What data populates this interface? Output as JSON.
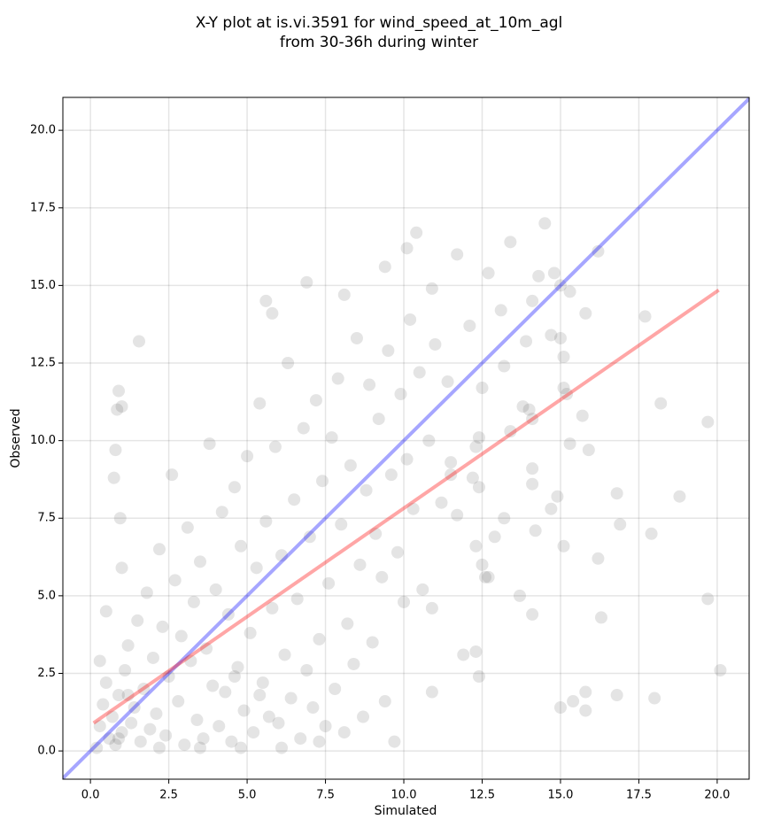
{
  "chart_data": {
    "type": "scatter",
    "title": [
      "X-Y plot at is.vi.3591 for wind_speed_at_10m_agl",
      "from 30-36h during winter"
    ],
    "xlabel": "Simulated",
    "ylabel": "Observed",
    "xlim": [
      -0.88,
      21.02
    ],
    "ylim": [
      -0.91,
      21.06
    ],
    "xticks": [
      {
        "value": 0,
        "label": "0.0"
      },
      2.5,
      {
        "value": 5,
        "label": "5.0"
      },
      7.5,
      {
        "value": 10,
        "label": "10.0"
      },
      12.5,
      {
        "value": 15,
        "label": "15.0"
      },
      17.5,
      {
        "value": 20,
        "label": "20.0"
      }
    ],
    "yticks": [
      {
        "value": 0,
        "label": "0.0"
      },
      2.5,
      {
        "value": 5,
        "label": "5.0"
      },
      7.5,
      {
        "value": 10,
        "label": "10.0"
      },
      12.5,
      {
        "value": 15,
        "label": "15.0"
      },
      17.5,
      {
        "value": 20,
        "label": "20.0"
      }
    ],
    "grid": true,
    "points": {
      "color": "#404040",
      "opacity": 0.14,
      "x": [
        1.55,
        0.9,
        1.0,
        0.85,
        0.75,
        0.8,
        0.95,
        10.4,
        10.1,
        11.7,
        13.4,
        14.5,
        16.2,
        9.4,
        6.9,
        5.6,
        5.8,
        8.1,
        10.9,
        12.7,
        14.3,
        14.8,
        15.0,
        15.3,
        15.8,
        17.7,
        14.1,
        13.1,
        12.1,
        13.9,
        15.0,
        14.7,
        15.1,
        13.2,
        12.5,
        13.8,
        14.0,
        14.1,
        13.4,
        12.4,
        12.3,
        15.1,
        15.2,
        15.7,
        15.3,
        15.9,
        18.2,
        19.7,
        18.8,
        17.9,
        16.8,
        16.9,
        15.1,
        14.9,
        14.7,
        14.1,
        14.1,
        14.2,
        13.2,
        12.9,
        12.3,
        12.5,
        12.6,
        12.7,
        13.7,
        14.1,
        16.3,
        16.2,
        19.7,
        20.1,
        18.0,
        16.8,
        15.8,
        15.8,
        15.4,
        15.0,
        12.3,
        12.4,
        11.9,
        10.9,
        10.9,
        11.5,
        11.7,
        11.5,
        12.2,
        12.4,
        0.2,
        0.3,
        0.4,
        0.5,
        0.6,
        0.7,
        0.8,
        0.9,
        1.0,
        1.1,
        1.2,
        1.3,
        1.4,
        1.5,
        1.6,
        1.7,
        1.8,
        1.9,
        2.0,
        2.1,
        2.2,
        2.3,
        2.4,
        2.5,
        2.6,
        2.7,
        2.8,
        2.9,
        3.0,
        3.1,
        3.2,
        3.3,
        3.4,
        3.5,
        3.6,
        3.7,
        3.8,
        3.9,
        4.0,
        4.1,
        4.2,
        4.3,
        4.4,
        4.5,
        4.6,
        4.7,
        4.8,
        4.9,
        5.0,
        5.1,
        5.2,
        5.3,
        5.4,
        5.5,
        5.6,
        5.7,
        5.8,
        5.9,
        6.0,
        6.1,
        6.2,
        6.3,
        6.4,
        6.5,
        6.6,
        6.7,
        6.8,
        6.9,
        7.0,
        7.1,
        7.2,
        7.3,
        7.4,
        7.5,
        7.6,
        7.7,
        7.8,
        7.9,
        8.0,
        8.1,
        8.2,
        8.3,
        8.4,
        8.5,
        8.6,
        8.7,
        8.8,
        8.9,
        9.0,
        9.1,
        9.2,
        9.3,
        9.4,
        9.5,
        9.6,
        9.7,
        9.8,
        9.9,
        10.0,
        10.1,
        10.2,
        10.3,
        10.5,
        10.6,
        10.8,
        11.0,
        11.2,
        11.4,
        0.5,
        1.0,
        0.3,
        1.2,
        0.9,
        2.2,
        3.5,
        4.8,
        6.1,
        7.3,
        5.4,
        4.6
      ],
      "y": [
        13.2,
        11.6,
        11.1,
        11.0,
        8.8,
        9.7,
        7.5,
        16.7,
        16.2,
        16.0,
        16.4,
        17.0,
        16.1,
        15.6,
        15.1,
        14.5,
        14.1,
        14.7,
        14.9,
        15.4,
        15.3,
        15.4,
        15.0,
        14.8,
        14.1,
        14.0,
        14.5,
        14.2,
        13.7,
        13.2,
        13.3,
        13.4,
        12.7,
        12.4,
        11.7,
        11.1,
        11.0,
        10.7,
        10.3,
        10.1,
        9.8,
        11.7,
        11.5,
        10.8,
        9.9,
        9.7,
        11.2,
        10.6,
        8.2,
        7.0,
        8.3,
        7.3,
        6.6,
        8.2,
        7.8,
        9.1,
        8.6,
        7.1,
        7.5,
        6.9,
        6.6,
        6.0,
        5.6,
        5.6,
        5.0,
        4.4,
        4.3,
        6.2,
        4.9,
        2.6,
        1.7,
        1.8,
        1.9,
        1.3,
        1.6,
        1.4,
        3.2,
        2.4,
        3.1,
        1.9,
        4.6,
        8.9,
        7.6,
        9.3,
        8.8,
        8.5,
        0.1,
        0.8,
        1.5,
        2.2,
        0.4,
        1.1,
        0.2,
        1.8,
        0.6,
        2.6,
        3.4,
        0.9,
        1.4,
        4.2,
        0.3,
        2.0,
        5.1,
        0.7,
        3.0,
        1.2,
        6.5,
        4.0,
        0.5,
        2.4,
        8.9,
        5.5,
        1.6,
        3.7,
        0.2,
        7.2,
        2.9,
        4.8,
        1.0,
        6.1,
        0.4,
        3.3,
        9.9,
        2.1,
        5.2,
        0.8,
        7.7,
        1.9,
        4.4,
        0.3,
        8.5,
        2.7,
        6.6,
        1.3,
        9.5,
        3.8,
        0.6,
        5.9,
        11.2,
        2.2,
        7.4,
        1.1,
        4.6,
        9.8,
        0.9,
        6.3,
        3.1,
        12.5,
        1.7,
        8.1,
        4.9,
        0.4,
        10.4,
        2.6,
        6.9,
        1.4,
        11.3,
        3.6,
        8.7,
        0.8,
        5.4,
        10.1,
        2.0,
        12.0,
        7.3,
        0.6,
        4.1,
        9.2,
        2.8,
        13.3,
        6.0,
        1.1,
        8.4,
        11.8,
        3.5,
        7.0,
        10.7,
        5.6,
        1.6,
        12.9,
        8.9,
        0.3,
        6.4,
        11.5,
        4.8,
        9.4,
        13.9,
        7.8,
        12.2,
        5.2,
        10.0,
        13.1,
        8.0,
        11.9,
        4.5,
        5.9,
        2.9,
        1.8,
        0.4,
        0.1,
        0.1,
        0.1,
        0.1,
        0.3,
        1.8,
        2.4
      ]
    },
    "lines": [
      {
        "color": "#0000ff",
        "opacity": 0.35,
        "x": [
          -0.88,
          21.02
        ],
        "y": [
          -0.88,
          21.02
        ]
      },
      {
        "color": "#ff0000",
        "opacity": 0.35,
        "x": [
          0.1,
          20.05
        ],
        "y": [
          0.9,
          14.85
        ]
      }
    ]
  }
}
